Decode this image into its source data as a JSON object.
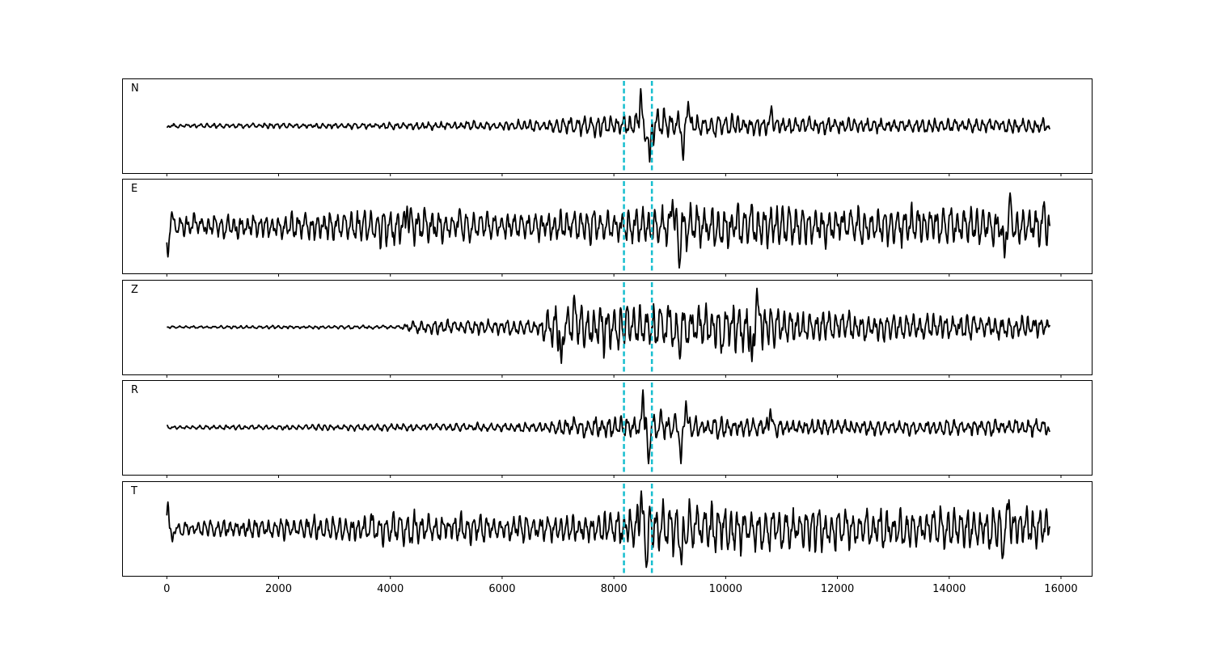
{
  "chart_data": {
    "type": "line",
    "xlim": [
      -800,
      16550
    ],
    "xticks": [
      0,
      2000,
      4000,
      6000,
      8000,
      10000,
      12000,
      14000,
      16000
    ],
    "tick_labels": [
      "0",
      "2000",
      "4000",
      "6000",
      "8000",
      "10000",
      "12000",
      "14000",
      "16000"
    ],
    "grid": false,
    "line_color": "#000000",
    "marker_color": "#17becf",
    "markers": [
      8180,
      8680
    ],
    "panels": [
      {
        "name": "N",
        "seed": 11,
        "noise": [
          [
            0,
            0.03
          ],
          [
            3600,
            0.05
          ],
          [
            6800,
            0.09
          ],
          [
            7050,
            0.13
          ],
          [
            8200,
            0.18
          ],
          [
            8700,
            0.26
          ],
          [
            9500,
            0.17
          ],
          [
            11000,
            0.14
          ],
          [
            13000,
            0.11
          ],
          [
            15800,
            0.12
          ]
        ],
        "events": [
          {
            "x": 0,
            "y": -0.04
          },
          {
            "x": 8480,
            "y": 0.84
          },
          {
            "x": 8560,
            "y": -0.35
          },
          {
            "x": 8640,
            "y": -0.82
          },
          {
            "x": 9240,
            "y": -0.78
          },
          {
            "x": 9330,
            "y": 0.55
          },
          {
            "x": 10820,
            "y": 0.45
          },
          {
            "x": 15800,
            "y": -0.08
          }
        ]
      },
      {
        "name": "E",
        "seed": 23,
        "noise": [
          [
            0,
            0.12
          ],
          [
            500,
            0.18
          ],
          [
            3000,
            0.22
          ],
          [
            4200,
            0.32
          ],
          [
            6000,
            0.2
          ],
          [
            7800,
            0.26
          ],
          [
            9000,
            0.36
          ],
          [
            11000,
            0.34
          ],
          [
            14000,
            0.3
          ],
          [
            15800,
            0.35
          ]
        ],
        "events": [
          {
            "x": 0,
            "y": -0.1
          },
          {
            "x": 20,
            "y": -0.7
          },
          {
            "x": 90,
            "y": 0.32
          },
          {
            "x": 4300,
            "y": 0.45
          },
          {
            "x": 9170,
            "y": -0.95
          },
          {
            "x": 9050,
            "y": 0.6
          },
          {
            "x": 15090,
            "y": 0.75
          },
          {
            "x": 14990,
            "y": -0.72
          },
          {
            "x": 15700,
            "y": 0.55
          },
          {
            "x": 15800,
            "y": 0
          }
        ]
      },
      {
        "name": "Z",
        "seed": 37,
        "noise": [
          [
            0,
            0.02
          ],
          [
            4200,
            0.03
          ],
          [
            4350,
            0.12
          ],
          [
            6600,
            0.12
          ],
          [
            6900,
            0.38
          ],
          [
            8200,
            0.4
          ],
          [
            9100,
            0.34
          ],
          [
            10500,
            0.45
          ],
          [
            11000,
            0.28
          ],
          [
            13000,
            0.22
          ],
          [
            15800,
            0.18
          ]
        ],
        "events": [
          {
            "x": 0,
            "y": 0
          },
          {
            "x": 7060,
            "y": -0.82
          },
          {
            "x": 7290,
            "y": 0.72
          },
          {
            "x": 9180,
            "y": -0.72
          },
          {
            "x": 10470,
            "y": -0.78
          },
          {
            "x": 10560,
            "y": 0.88
          },
          {
            "x": 10620,
            "y": 0.3
          },
          {
            "x": 15800,
            "y": 0.05
          }
        ]
      },
      {
        "name": "R",
        "seed": 53,
        "noise": [
          [
            0,
            0.03
          ],
          [
            3600,
            0.05
          ],
          [
            6800,
            0.08
          ],
          [
            7050,
            0.15
          ],
          [
            8200,
            0.2
          ],
          [
            8700,
            0.26
          ],
          [
            9500,
            0.17
          ],
          [
            11000,
            0.15
          ],
          [
            13000,
            0.11
          ],
          [
            15800,
            0.13
          ]
        ],
        "events": [
          {
            "x": 0,
            "y": 0.05
          },
          {
            "x": 8520,
            "y": 0.85
          },
          {
            "x": 8620,
            "y": -0.82
          },
          {
            "x": 9200,
            "y": -0.82
          },
          {
            "x": 9290,
            "y": 0.6
          },
          {
            "x": 10800,
            "y": 0.42
          },
          {
            "x": 15800,
            "y": -0.1
          }
        ]
      },
      {
        "name": "T",
        "seed": 71,
        "noise": [
          [
            0,
            0.1
          ],
          [
            300,
            0.12
          ],
          [
            3000,
            0.2
          ],
          [
            4300,
            0.28
          ],
          [
            6000,
            0.2
          ],
          [
            7800,
            0.24
          ],
          [
            8400,
            0.38
          ],
          [
            9200,
            0.42
          ],
          [
            11000,
            0.34
          ],
          [
            14000,
            0.3
          ],
          [
            15800,
            0.34
          ]
        ],
        "events": [
          {
            "x": 0,
            "y": 0.05
          },
          {
            "x": 20,
            "y": 0.6
          },
          {
            "x": 100,
            "y": -0.3
          },
          {
            "x": 8490,
            "y": 0.85
          },
          {
            "x": 8580,
            "y": -0.88
          },
          {
            "x": 9210,
            "y": -0.82
          },
          {
            "x": 15070,
            "y": 0.65
          },
          {
            "x": 14950,
            "y": -0.68
          },
          {
            "x": 15800,
            "y": 0.05
          }
        ]
      }
    ]
  }
}
